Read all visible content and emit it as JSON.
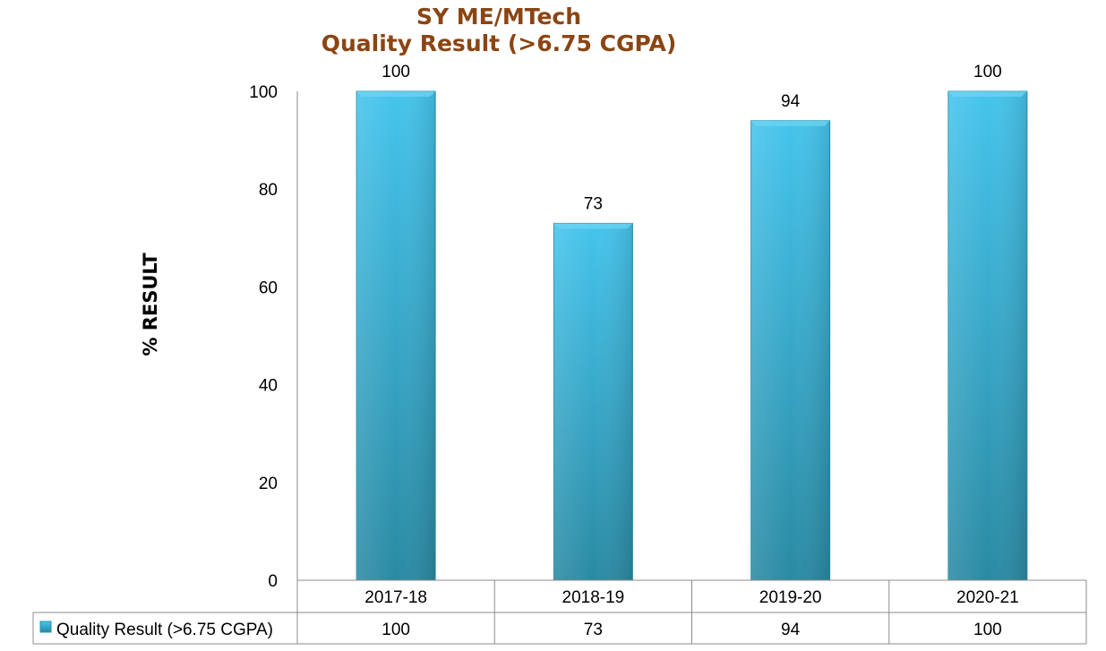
{
  "chart_data": {
    "type": "bar",
    "title": "SY ME/MTech",
    "subtitle": "Quality Result (>6.75 CGPA)",
    "ylabel": "% RESULT",
    "xlabel": "",
    "categories": [
      "2017-18",
      "2018-19",
      "2019-20",
      "2020-21"
    ],
    "series": [
      {
        "name": "Quality Result (>6.75 CGPA)",
        "values": [
          100,
          73,
          94,
          100
        ]
      }
    ],
    "ylim": [
      0,
      100
    ],
    "yticks": [
      0,
      20,
      40,
      60,
      80,
      100
    ],
    "grid": false,
    "legend": "data-table-row",
    "colors": {
      "bar_top": "#45c4ec",
      "bar_bottom": "#2a8aa3",
      "title": "#8b4513"
    }
  }
}
